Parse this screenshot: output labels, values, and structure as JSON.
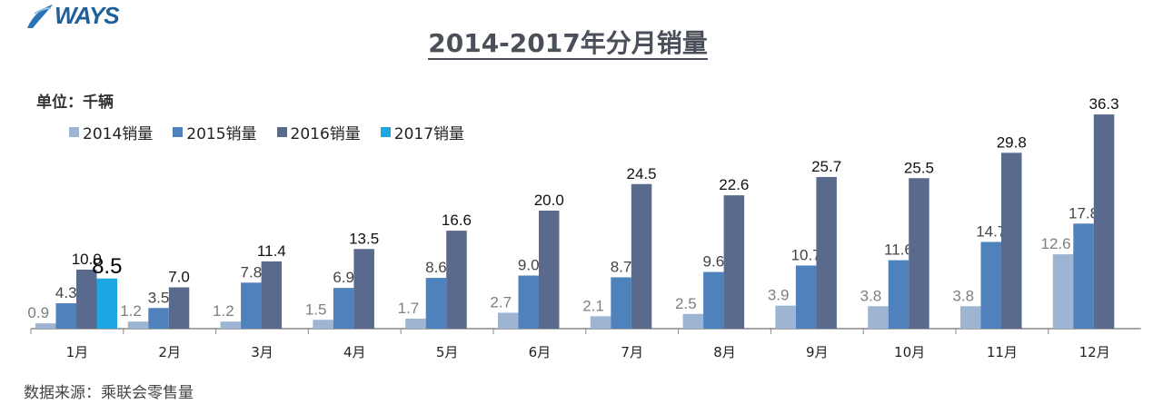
{
  "logo": {
    "text": "WAYS"
  },
  "unit_label": "单位：千辆",
  "source": "数据来源：乘联会零售量",
  "chart_data": {
    "type": "bar",
    "title": "2014-2017年分月销量",
    "categories": [
      "1月",
      "2月",
      "3月",
      "4月",
      "5月",
      "6月",
      "7月",
      "8月",
      "9月",
      "10月",
      "11月",
      "12月"
    ],
    "series": [
      {
        "name": "2014销量",
        "color": "#9db4d2",
        "values": [
          0.9,
          1.2,
          1.2,
          1.5,
          1.7,
          2.7,
          2.1,
          2.5,
          3.9,
          3.8,
          3.8,
          12.6
        ]
      },
      {
        "name": "2015销量",
        "color": "#4f81bd",
        "values": [
          4.3,
          3.5,
          7.8,
          6.9,
          8.6,
          9.0,
          8.7,
          9.6,
          10.7,
          11.6,
          14.7,
          17.8
        ]
      },
      {
        "name": "2016销量",
        "color": "#5a6a8c",
        "values": [
          10.0,
          7.0,
          11.4,
          13.5,
          16.6,
          20.0,
          24.5,
          22.6,
          25.7,
          25.5,
          29.8,
          36.3
        ]
      },
      {
        "name": "2017销量",
        "color": "#1aa7e2",
        "values": [
          8.5,
          null,
          null,
          null,
          null,
          null,
          null,
          null,
          null,
          null,
          null,
          null
        ]
      }
    ],
    "legend_position": "top-left",
    "grid": false,
    "ylim": [
      0,
      40
    ]
  }
}
